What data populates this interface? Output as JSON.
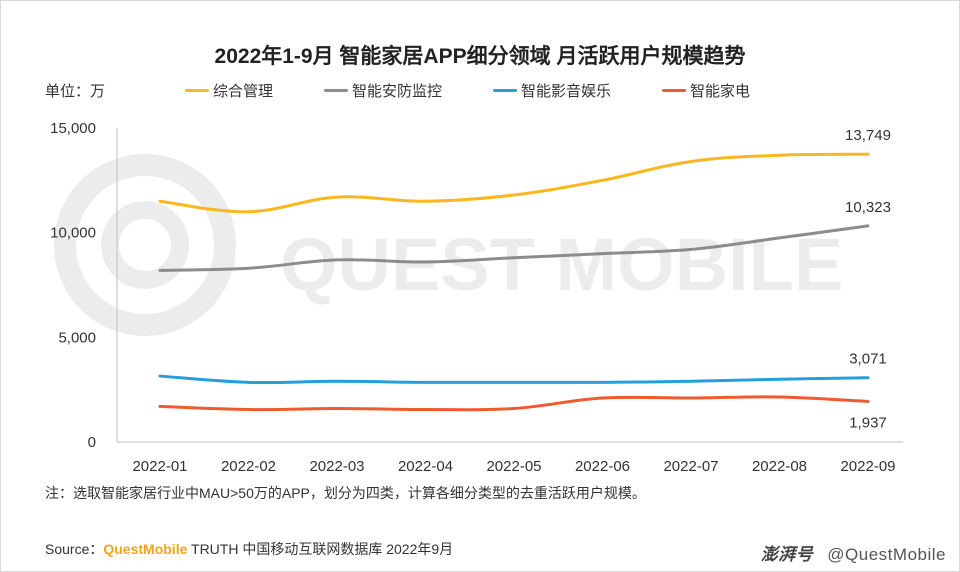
{
  "title": "2022年1-9月 智能家居APP细分领域 月活跃用户规模趋势",
  "unit": "单位：万",
  "note": "注：选取智能家居行业中MAU>50万的APP，划分为四类，计算各细分类型的去重活跃用户规模。",
  "source": {
    "prefix": "Source：",
    "brand": "QuestMobile",
    "rest": " TRUTH 中国移动互联网数据库 2022年9月"
  },
  "watermark": "QUEST MOBILE",
  "credit": {
    "publisher": "澎湃号",
    "handle": "@QuestMobile"
  },
  "chart_data": {
    "type": "line",
    "categories": [
      "2022-01",
      "2022-02",
      "2022-03",
      "2022-04",
      "2022-05",
      "2022-06",
      "2022-07",
      "2022-08",
      "2022-09"
    ],
    "ylim": [
      0,
      15000
    ],
    "yticks": [
      0,
      5000,
      10000,
      15000
    ],
    "ytick_labels": [
      "0",
      "5,000",
      "10,000",
      "15,000"
    ],
    "grid": false,
    "legend_position": "top",
    "series": [
      {
        "name": "综合管理",
        "color": "#f9b81f",
        "values": [
          11500,
          11000,
          11700,
          11500,
          11800,
          12500,
          13400,
          13700,
          13749
        ],
        "end_label": "13,749"
      },
      {
        "name": "智能安防监控",
        "color": "#8c8c8c",
        "values": [
          8200,
          8300,
          8700,
          8600,
          8800,
          9000,
          9200,
          9750,
          10323
        ],
        "end_label": "10,323"
      },
      {
        "name": "智能影音娱乐",
        "color": "#23a0dc",
        "values": [
          3150,
          2850,
          2900,
          2850,
          2850,
          2850,
          2900,
          3000,
          3071
        ],
        "end_label": "3,071"
      },
      {
        "name": "智能家电",
        "color": "#ef5a2f",
        "values": [
          1700,
          1550,
          1600,
          1550,
          1600,
          2100,
          2100,
          2150,
          1937
        ],
        "end_label": "1,937"
      }
    ]
  }
}
